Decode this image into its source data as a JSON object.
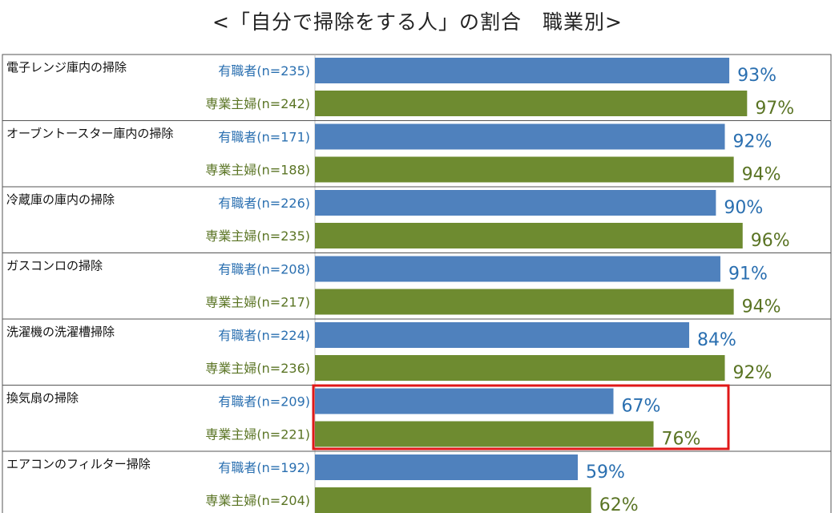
{
  "title": "<「自分で掃除をする人」の割合　職業別>",
  "colors": {
    "employed_bar": "#4f81bd",
    "employed_text": "#2a6fb0",
    "housewife_bar": "#6e8b30",
    "housewife_text": "#5a7424",
    "highlight": "#e01818",
    "grid": "#bfbfbf",
    "frame": "#555555"
  },
  "chart_data": {
    "type": "bar",
    "orientation": "horizontal",
    "title": "<「自分で掃除をする人」の割合　職業別>",
    "unit": "%",
    "xlim": [
      0,
      100
    ],
    "categories": [
      "電子レンジ庫内の掃除",
      "オーブントースター庫内の掃除",
      "冷蔵庫の庫内の掃除",
      "ガスコンロの掃除",
      "洗濯機の洗濯槽掃除",
      "換気扇の掃除",
      "エアコンのフィルター掃除"
    ],
    "series": [
      {
        "name": "有職者",
        "labels": [
          "有職者(n=235)",
          "有職者(n=171)",
          "有職者(n=226)",
          "有職者(n=208)",
          "有職者(n=224)",
          "有職者(n=209)",
          "有職者(n=192)"
        ],
        "values": [
          93,
          92,
          90,
          91,
          84,
          67,
          59
        ]
      },
      {
        "name": "専業主婦",
        "labels": [
          "専業主婦(n=242)",
          "専業主婦(n=188)",
          "専業主婦(n=235)",
          "専業主婦(n=217)",
          "専業主婦(n=236)",
          "専業主婦(n=221)",
          "専業主婦(n=204)"
        ],
        "values": [
          97,
          94,
          96,
          94,
          92,
          76,
          62
        ]
      }
    ],
    "highlighted_category": "換気扇の掃除"
  }
}
